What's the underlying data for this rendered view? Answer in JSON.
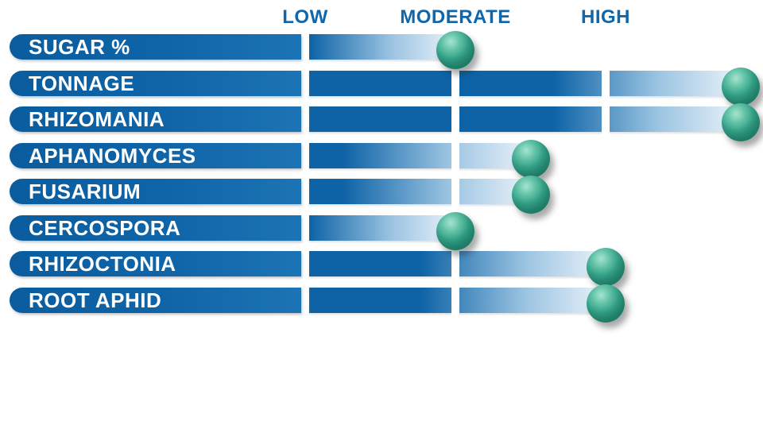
{
  "chart_data": {
    "type": "bar",
    "orientation": "horizontal",
    "title": "",
    "categories": [
      "SUGAR %",
      "TONNAGE",
      "RHIZOMANIA",
      "APHANOMYCES",
      "FUSARIUM",
      "CERCOSPORA",
      "RHIZOCTONIA",
      "ROOT APHID"
    ],
    "values": [
      1,
      2.9,
      2.9,
      1.5,
      1.5,
      1,
      2,
      2
    ],
    "levels": [
      "moderate",
      "very-high",
      "very-high",
      "moderate-high",
      "moderate-high",
      "moderate",
      "high",
      "high"
    ],
    "axis": {
      "ticks": [
        {
          "label": "LOW",
          "value": 0
        },
        {
          "label": "MODERATE",
          "value": 1
        },
        {
          "label": "HIGH",
          "value": 2
        }
      ],
      "range": [
        0,
        3
      ]
    },
    "legend": "none",
    "grid": "off",
    "colors": {
      "bar_blue": "#0d63a6",
      "bar_fade_mid": "#9cc4e2",
      "bar_fade_end": "#eef5fb",
      "tick_text": "#0f66ab",
      "label_text": "#ffffff",
      "marker_teal": "#2fa086",
      "marker_highlight": "#8ed9bf",
      "background": "#ffffff"
    }
  }
}
